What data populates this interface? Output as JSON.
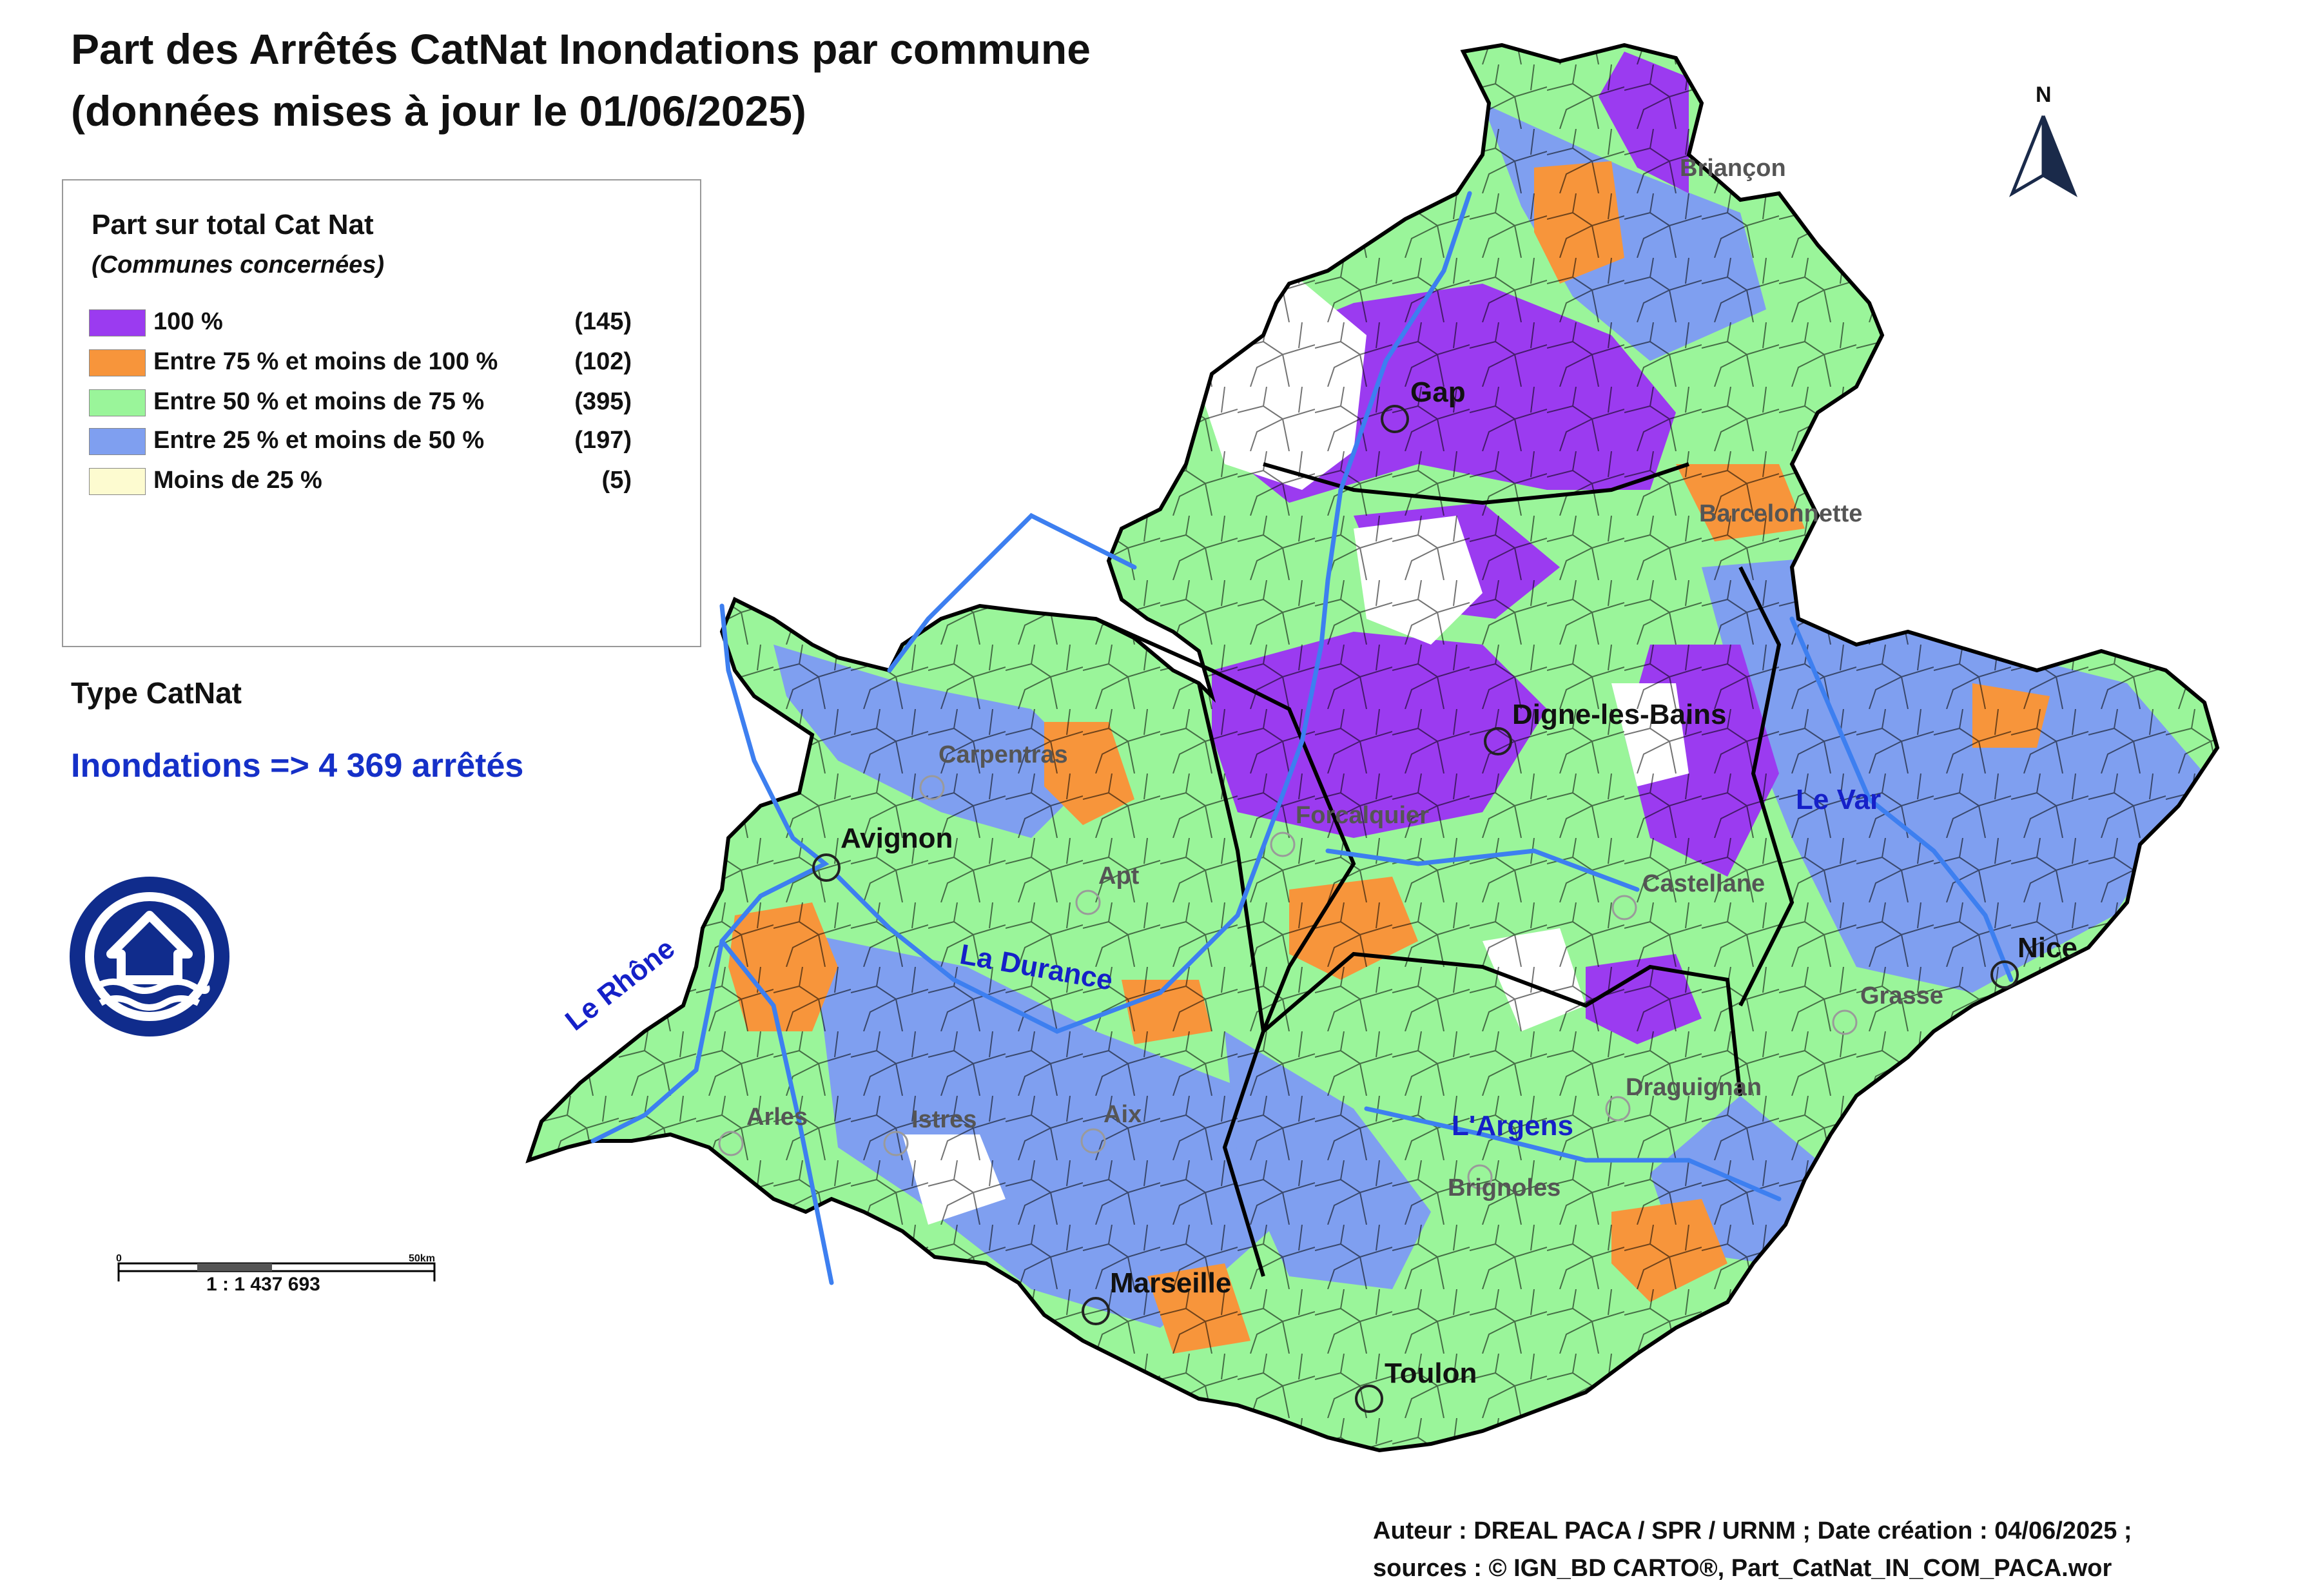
{
  "title": {
    "line1": "Part des Arrêtés CatNat Inondations par commune",
    "line2": "(données mises à jour le 01/06/2025)"
  },
  "legend": {
    "title": "Part sur total Cat Nat",
    "subtitle": "(Communes concernées)",
    "classes": [
      {
        "label": "100  %",
        "count": "(145)",
        "color": "#9b3bf0"
      },
      {
        "label": "Entre 75 % et moins de 100 %",
        "count": "(102)",
        "color": "#f7953b"
      },
      {
        "label": "Entre 50 % et moins de 75 %",
        "count": "(395)",
        "color": "#9af59a"
      },
      {
        "label": "Entre 25 % et moins de 50 %",
        "count": "(197)",
        "color": "#7f9ff0"
      },
      {
        "label": "Moins de 25 %",
        "count": "(5)",
        "color": "#fdfbd0"
      }
    ]
  },
  "type_catnat": {
    "heading": "Type CatNat",
    "value": "Inondations => 4 369 arrêtés"
  },
  "north_arrow": {
    "label": "N"
  },
  "scale": {
    "start": "0",
    "end": "50km",
    "ratio": "1 : 1 437 693"
  },
  "cities": {
    "major": [
      "Gap",
      "Digne-les-Bains",
      "Avignon",
      "Nice",
      "Marseille",
      "Toulon"
    ],
    "minor": [
      "Briançon",
      "Barcelonnette",
      "Carpentras",
      "Forcalquier",
      "Apt",
      "Castellane",
      "Grasse",
      "Draguignan",
      "Arles",
      "Istres",
      "Aix",
      "Brignoles"
    ]
  },
  "rivers": [
    "Le Rhône",
    "La Durance",
    "Le Var",
    "L'Argens"
  ],
  "credits": {
    "line1": "Auteur : DREAL PACA / SPR / URNM ; Date création : 04/06/2025  ;",
    "line2": "sources : © IGN_BD CARTO®, Part_CatNat_IN_COM_PACA.wor"
  },
  "colors": {
    "river": "#3d7ff0",
    "boundary": "#000000",
    "no_data": "#ffffff"
  }
}
